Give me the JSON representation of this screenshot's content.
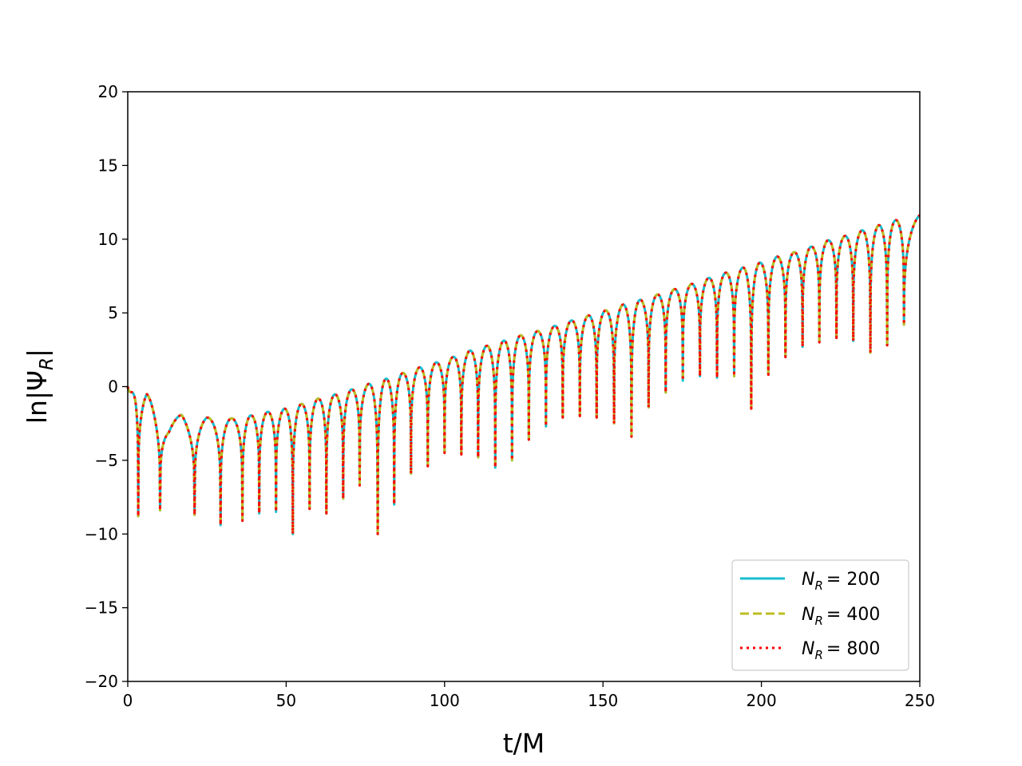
{
  "chart_data": {
    "type": "line",
    "xlabel": "t/M",
    "ylabel_prefix": "ln|Ψ",
    "ylabel_sub": "R",
    "ylabel_suffix": "|",
    "xlim": [
      0,
      250
    ],
    "ylim": [
      -20,
      20
    ],
    "xticks": [
      0,
      50,
      100,
      150,
      200,
      250
    ],
    "xtick_labels": [
      "0",
      "50",
      "100",
      "150",
      "200",
      "250"
    ],
    "yticks": [
      -20,
      -15,
      -10,
      -5,
      0,
      5,
      10,
      15,
      20
    ],
    "ytick_labels": [
      "−20",
      "−15",
      "−10",
      "−5",
      "0",
      "5",
      "10",
      "15",
      "20"
    ],
    "grid": false,
    "legend_position": "lower-right",
    "series": [
      {
        "name_sym": "N",
        "name_sub": "R",
        "name_val": "= 200",
        "color": "#17becf",
        "style": "solid"
      },
      {
        "name_sym": "N",
        "name_sub": "R",
        "name_val": "= 400",
        "color": "#bcbd22",
        "style": "dashed"
      },
      {
        "name_sym": "N",
        "name_sub": "R",
        "name_val": "= 800",
        "color": "#ff0000",
        "style": "dotted"
      }
    ],
    "envelope": [
      [
        0,
        0.0
      ],
      [
        3,
        -0.8
      ],
      [
        6,
        -0.4
      ],
      [
        10,
        -2.3
      ],
      [
        13,
        -2.7
      ],
      [
        17,
        -1.8
      ],
      [
        21,
        -2.5
      ],
      [
        25,
        -2.1
      ],
      [
        30,
        -2.2
      ],
      [
        36,
        -2.1
      ],
      [
        42,
        -1.8
      ],
      [
        47,
        -1.6
      ],
      [
        52,
        -1.4
      ],
      [
        57,
        -1.0
      ],
      [
        62,
        -0.7
      ],
      [
        68,
        -0.4
      ],
      [
        73,
        0.0
      ],
      [
        78,
        0.3
      ],
      [
        84,
        0.7
      ],
      [
        89,
        1.1
      ],
      [
        95,
        1.5
      ],
      [
        100,
        1.8
      ],
      [
        105,
        2.2
      ],
      [
        110,
        2.6
      ],
      [
        116,
        2.9
      ],
      [
        121,
        3.3
      ],
      [
        126,
        3.6
      ],
      [
        132,
        3.9
      ],
      [
        137,
        4.3
      ],
      [
        142,
        4.6
      ],
      [
        148,
        5.0
      ],
      [
        153,
        5.3
      ],
      [
        158,
        5.7
      ],
      [
        164,
        6.0
      ],
      [
        169,
        6.4
      ],
      [
        174,
        6.7
      ],
      [
        180,
        7.1
      ],
      [
        185,
        7.5
      ],
      [
        190,
        7.8
      ],
      [
        196,
        8.2
      ],
      [
        201,
        8.5
      ],
      [
        206,
        8.9
      ],
      [
        212,
        9.2
      ],
      [
        217,
        9.6
      ],
      [
        222,
        10.0
      ],
      [
        228,
        10.3
      ],
      [
        233,
        10.7
      ],
      [
        238,
        11.0
      ],
      [
        244,
        11.4
      ],
      [
        250,
        11.7
      ]
    ],
    "dips": [
      [
        3.3,
        -8.8
      ],
      [
        10.2,
        -8.4
      ],
      [
        21.1,
        -8.7
      ],
      [
        29.3,
        -9.4
      ],
      [
        36.2,
        -9.1
      ],
      [
        41.5,
        -8.6
      ],
      [
        46.8,
        -8.5
      ],
      [
        52.1,
        -10.0
      ],
      [
        57.4,
        -8.3
      ],
      [
        62.7,
        -8.6
      ],
      [
        68.0,
        -7.6
      ],
      [
        73.2,
        -6.7
      ],
      [
        78.9,
        -10.0
      ],
      [
        84.1,
        -8.0
      ],
      [
        89.4,
        -5.9
      ],
      [
        94.7,
        -5.4
      ],
      [
        100.0,
        -4.5
      ],
      [
        105.3,
        -4.6
      ],
      [
        110.6,
        -4.8
      ],
      [
        116.0,
        -5.5
      ],
      [
        121.3,
        -5.0
      ],
      [
        126.6,
        -3.6
      ],
      [
        132.0,
        -2.7
      ],
      [
        137.3,
        -2.1
      ],
      [
        142.7,
        -2.0
      ],
      [
        148.0,
        -2.1
      ],
      [
        153.5,
        -2.5
      ],
      [
        159.0,
        -3.4
      ],
      [
        164.4,
        -1.4
      ],
      [
        169.8,
        -0.4
      ],
      [
        175.2,
        0.4
      ],
      [
        180.6,
        0.7
      ],
      [
        186.0,
        0.6
      ],
      [
        191.4,
        0.7
      ],
      [
        196.8,
        -1.5
      ],
      [
        202.2,
        0.8
      ],
      [
        207.6,
        2.0
      ],
      [
        213.0,
        2.7
      ],
      [
        218.3,
        3.0
      ],
      [
        223.7,
        3.3
      ],
      [
        229.0,
        3.1
      ],
      [
        234.4,
        2.3
      ],
      [
        239.7,
        2.8
      ],
      [
        245.0,
        4.2
      ]
    ]
  }
}
